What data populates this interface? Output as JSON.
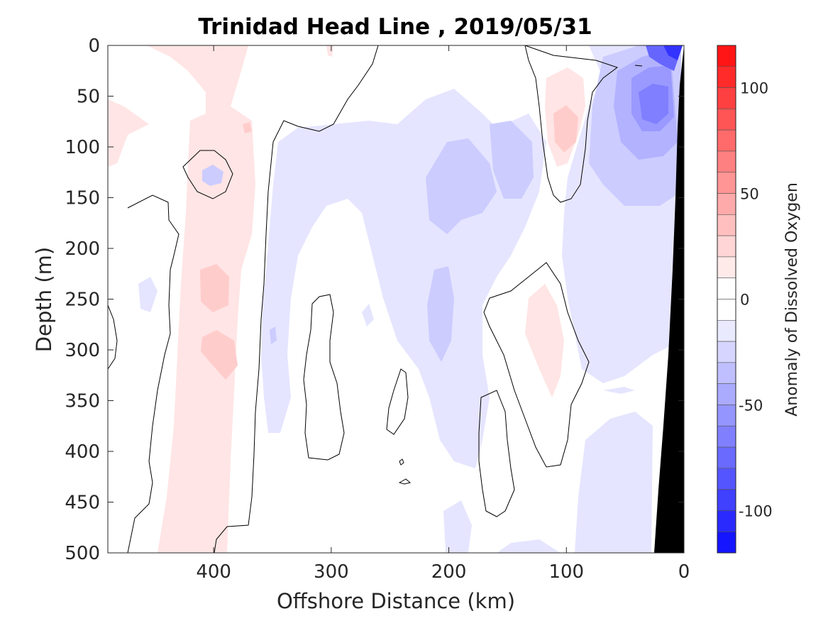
{
  "chart_data": {
    "type": "heatmap",
    "title": "Trinidad Head Line , 2019/05/31",
    "xlabel": "Offshore Distance (km)",
    "ylabel": "Depth (m)",
    "xlim": [
      490,
      0
    ],
    "ylim": [
      0,
      500
    ],
    "x_ticks": [
      400,
      300,
      200,
      100,
      0
    ],
    "y_ticks": [
      0,
      50,
      100,
      150,
      200,
      250,
      300,
      350,
      400,
      450,
      500
    ],
    "colorbar": {
      "label": "Anomaly of Dissolved Oxygen",
      "range": [
        -120,
        120
      ],
      "step": 10,
      "ticks": [
        100,
        50,
        0,
        -50,
        -100
      ],
      "colors": {
        "max_positive": "#ff0000",
        "zero": "#ffffff",
        "max_negative": "#0000ff"
      }
    },
    "land_color": "#000000",
    "features": [
      {
        "kind": "positive",
        "value": 10,
        "x_range": [
          460,
          350
        ],
        "depth_range": [
          0,
          500
        ]
      },
      {
        "kind": "positive",
        "value": 20,
        "center_km": [
          395,
          240
        ],
        "note_value": 20
      },
      {
        "kind": "positive",
        "value": 20,
        "center_km": [
          395,
          300
        ]
      },
      {
        "kind": "positive",
        "value": 10,
        "center_km": [
          485,
          80
        ]
      },
      {
        "kind": "positive",
        "value": 20,
        "center_km": [
          120,
          90
        ]
      },
      {
        "kind": "positive",
        "value": 10,
        "center_km": [
          115,
          290
        ]
      },
      {
        "kind": "negative",
        "value": -70,
        "center_km": [
          30,
          60
        ]
      },
      {
        "kind": "negative",
        "value": -100,
        "center_km": [
          10,
          5
        ]
      },
      {
        "kind": "negative",
        "value": -30,
        "center_km": [
          145,
          120
        ]
      },
      {
        "kind": "negative",
        "value": -20,
        "center_km": [
          200,
          170
        ]
      },
      {
        "kind": "negative",
        "value": -20,
        "center_km": [
          205,
          270
        ]
      },
      {
        "kind": "negative",
        "value": -10,
        "x_range": [
          355,
          220
        ],
        "depth_range": [
          100,
          400
        ]
      },
      {
        "kind": "negative",
        "value": -20,
        "center_km": [
          50,
          250
        ]
      },
      {
        "kind": "negative",
        "value": -10,
        "center_km": [
          40,
          430
        ]
      },
      {
        "kind": "negative",
        "value": -10,
        "center_km": [
          405,
          125
        ]
      }
    ]
  }
}
